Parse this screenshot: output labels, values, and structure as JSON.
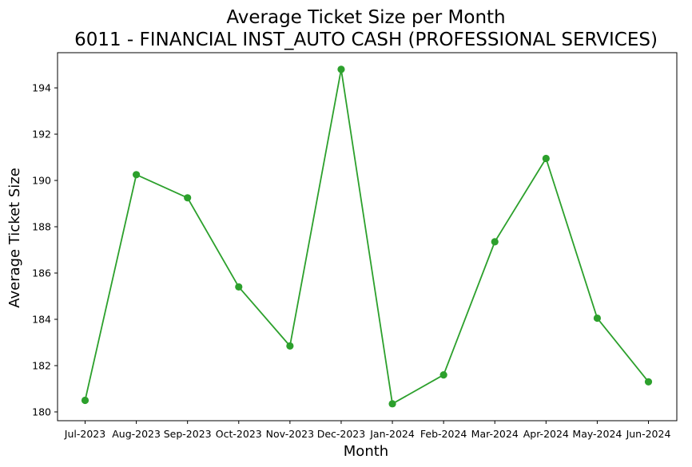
{
  "chart_data": {
    "type": "line",
    "title": "Average Ticket Size per Month",
    "subtitle": "6011 - FINANCIAL INST_AUTO CASH (PROFESSIONAL SERVICES)",
    "xlabel": "Month",
    "ylabel": "Average Ticket Size",
    "categories": [
      "Jul-2023",
      "Aug-2023",
      "Sep-2023",
      "Oct-2023",
      "Nov-2023",
      "Dec-2023",
      "Jan-2024",
      "Feb-2024",
      "Mar-2024",
      "Apr-2024",
      "May-2024",
      "Jun-2024"
    ],
    "series": [
      {
        "values": [
          180.5,
          190.25,
          189.25,
          185.4,
          182.85,
          194.8,
          180.35,
          181.6,
          187.35,
          190.95,
          184.05,
          181.3
        ],
        "color": "#2ca02c",
        "marker": "circle"
      }
    ],
    "ylim": [
      179.62,
      195.52
    ],
    "yticks": [
      180,
      182,
      184,
      186,
      188,
      190,
      192,
      194
    ],
    "ytick_labels": [
      "180",
      "182",
      "184",
      "186",
      "188",
      "190",
      "192",
      "194"
    ],
    "grid": false,
    "legend": "none"
  }
}
